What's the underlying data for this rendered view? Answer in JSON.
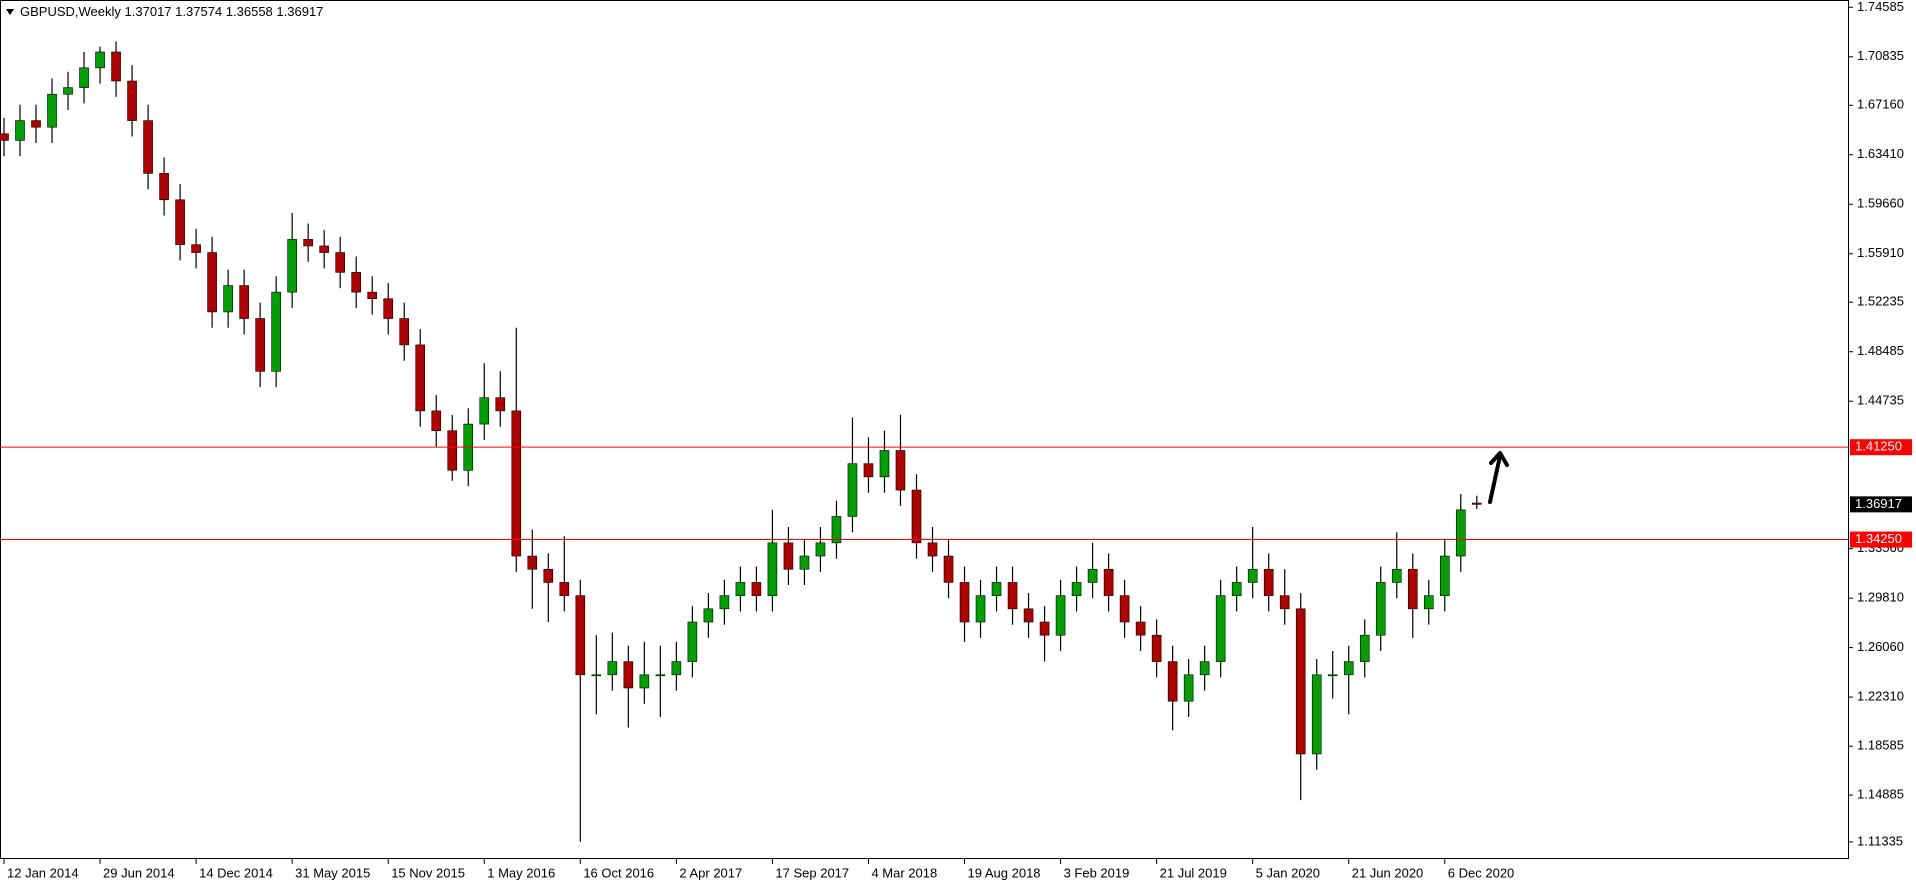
{
  "chart_data": {
    "type": "candlestick",
    "title": "GBPUSD,Weekly",
    "x": [
      "2014-01-12",
      "2014-02-09",
      "2014-03-09",
      "2014-04-06",
      "2014-05-04",
      "2014-06-01",
      "2014-06-29",
      "2014-07-27",
      "2014-08-24",
      "2014-09-21",
      "2014-10-19",
      "2014-11-16",
      "2014-12-14",
      "2015-01-11",
      "2015-02-08",
      "2015-03-08",
      "2015-04-05",
      "2015-05-03",
      "2015-05-31",
      "2015-06-28",
      "2015-07-26",
      "2015-08-23",
      "2015-09-20",
      "2015-10-18",
      "2015-11-15",
      "2015-12-13",
      "2016-01-10",
      "2016-02-07",
      "2016-03-06",
      "2016-04-03",
      "2016-05-01",
      "2016-05-29",
      "2016-06-26",
      "2016-07-24",
      "2016-08-21",
      "2016-09-18",
      "2016-10-16",
      "2016-11-13",
      "2016-12-11",
      "2017-01-08",
      "2017-02-05",
      "2017-03-05",
      "2017-04-02",
      "2017-04-30",
      "2017-05-28",
      "2017-06-25",
      "2017-07-23",
      "2017-08-20",
      "2017-09-17",
      "2017-10-15",
      "2017-11-12",
      "2017-12-10",
      "2018-01-07",
      "2018-02-04",
      "2018-03-04",
      "2018-04-01",
      "2018-04-29",
      "2018-05-27",
      "2018-06-24",
      "2018-07-22",
      "2018-08-19",
      "2018-09-16",
      "2018-10-14",
      "2018-11-11",
      "2018-12-09",
      "2019-01-06",
      "2019-02-03",
      "2019-03-03",
      "2019-03-31",
      "2019-04-28",
      "2019-05-26",
      "2019-06-23",
      "2019-07-21",
      "2019-08-18",
      "2019-09-15",
      "2019-10-13",
      "2019-11-10",
      "2019-12-08",
      "2020-01-05",
      "2020-02-02",
      "2020-03-01",
      "2020-03-29",
      "2020-04-26",
      "2020-05-24",
      "2020-06-21",
      "2020-07-19",
      "2020-08-16",
      "2020-09-13",
      "2020-10-11",
      "2020-11-08",
      "2020-12-06",
      "2021-01-03",
      "2021-01-31"
    ],
    "series": [
      {
        "up_color": "#00a000",
        "down_color": "#b00000",
        "wick_color": "#000000",
        "open": [
          1.65,
          1.645,
          1.66,
          1.655,
          1.68,
          1.685,
          1.7,
          1.712,
          1.69,
          1.66,
          1.62,
          1.6,
          1.566,
          1.56,
          1.515,
          1.535,
          1.51,
          1.47,
          1.53,
          1.57,
          1.565,
          1.56,
          1.545,
          1.53,
          1.525,
          1.51,
          1.49,
          1.44,
          1.425,
          1.395,
          1.43,
          1.45,
          1.44,
          1.33,
          1.32,
          1.31,
          1.3,
          1.24,
          1.24,
          1.25,
          1.23,
          1.24,
          1.24,
          1.25,
          1.28,
          1.29,
          1.3,
          1.31,
          1.3,
          1.34,
          1.32,
          1.33,
          1.34,
          1.36,
          1.4,
          1.39,
          1.41,
          1.38,
          1.34,
          1.33,
          1.31,
          1.28,
          1.3,
          1.31,
          1.29,
          1.28,
          1.27,
          1.3,
          1.31,
          1.32,
          1.3,
          1.28,
          1.27,
          1.25,
          1.22,
          1.24,
          1.25,
          1.3,
          1.31,
          1.32,
          1.3,
          1.29,
          1.18,
          1.24,
          1.24,
          1.25,
          1.27,
          1.31,
          1.32,
          1.29,
          1.3,
          1.33,
          1.37017
        ],
        "high": [
          1.662,
          1.672,
          1.672,
          1.692,
          1.697,
          1.712,
          1.716,
          1.72,
          1.702,
          1.672,
          1.632,
          1.612,
          1.578,
          1.572,
          1.547,
          1.547,
          1.522,
          1.542,
          1.59,
          1.582,
          1.577,
          1.572,
          1.557,
          1.542,
          1.537,
          1.522,
          1.502,
          1.452,
          1.437,
          1.442,
          1.476,
          1.47,
          1.503,
          1.35,
          1.332,
          1.345,
          1.312,
          1.27,
          1.272,
          1.262,
          1.265,
          1.262,
          1.265,
          1.292,
          1.302,
          1.312,
          1.322,
          1.322,
          1.365,
          1.352,
          1.342,
          1.352,
          1.372,
          1.435,
          1.42,
          1.425,
          1.437,
          1.392,
          1.352,
          1.342,
          1.322,
          1.312,
          1.322,
          1.322,
          1.302,
          1.292,
          1.312,
          1.322,
          1.34,
          1.332,
          1.312,
          1.292,
          1.282,
          1.262,
          1.252,
          1.262,
          1.312,
          1.322,
          1.352,
          1.332,
          1.32,
          1.302,
          1.252,
          1.258,
          1.262,
          1.282,
          1.322,
          1.348,
          1.332,
          1.312,
          1.342,
          1.377,
          1.37574
        ],
        "low": [
          1.633,
          1.633,
          1.643,
          1.643,
          1.668,
          1.673,
          1.688,
          1.678,
          1.648,
          1.608,
          1.588,
          1.554,
          1.548,
          1.503,
          1.503,
          1.498,
          1.458,
          1.458,
          1.518,
          1.553,
          1.548,
          1.533,
          1.518,
          1.513,
          1.498,
          1.478,
          1.428,
          1.413,
          1.387,
          1.383,
          1.418,
          1.428,
          1.318,
          1.29,
          1.28,
          1.288,
          1.1135,
          1.21,
          1.228,
          1.2,
          1.218,
          1.208,
          1.228,
          1.238,
          1.268,
          1.278,
          1.288,
          1.288,
          1.288,
          1.308,
          1.308,
          1.318,
          1.328,
          1.348,
          1.378,
          1.378,
          1.368,
          1.328,
          1.318,
          1.298,
          1.265,
          1.268,
          1.288,
          1.278,
          1.268,
          1.25,
          1.258,
          1.288,
          1.298,
          1.288,
          1.268,
          1.258,
          1.238,
          1.198,
          1.208,
          1.228,
          1.238,
          1.288,
          1.298,
          1.288,
          1.278,
          1.145,
          1.168,
          1.222,
          1.21,
          1.238,
          1.258,
          1.298,
          1.268,
          1.278,
          1.288,
          1.318,
          1.36558
        ],
        "close": [
          1.645,
          1.66,
          1.655,
          1.68,
          1.685,
          1.7,
          1.712,
          1.69,
          1.66,
          1.62,
          1.6,
          1.566,
          1.56,
          1.515,
          1.535,
          1.51,
          1.47,
          1.53,
          1.57,
          1.565,
          1.56,
          1.545,
          1.53,
          1.525,
          1.51,
          1.49,
          1.44,
          1.425,
          1.395,
          1.43,
          1.45,
          1.44,
          1.33,
          1.32,
          1.31,
          1.3,
          1.24,
          1.24,
          1.25,
          1.23,
          1.24,
          1.24,
          1.25,
          1.28,
          1.29,
          1.3,
          1.31,
          1.3,
          1.34,
          1.32,
          1.33,
          1.34,
          1.36,
          1.4,
          1.39,
          1.41,
          1.38,
          1.34,
          1.33,
          1.31,
          1.28,
          1.3,
          1.31,
          1.29,
          1.28,
          1.27,
          1.3,
          1.31,
          1.32,
          1.3,
          1.28,
          1.27,
          1.25,
          1.22,
          1.24,
          1.25,
          1.3,
          1.31,
          1.32,
          1.3,
          1.29,
          1.18,
          1.24,
          1.24,
          1.25,
          1.27,
          1.31,
          1.32,
          1.29,
          1.3,
          1.33,
          1.365,
          1.36917
        ]
      }
    ],
    "current_price_color": "#000000",
    "hlines": [
      {
        "value": 1.4125,
        "label": "1.41250",
        "color": "#ff0000"
      },
      {
        "value": 1.3425,
        "label": "1.34250",
        "color": "#ff0000"
      }
    ],
    "xlim": [
      "2014-01-05",
      "2022-11-13"
    ],
    "ylim": [
      1.1004,
      1.7514
    ],
    "yticks": [
      1.74585,
      1.70835,
      {
        "value": 1.6716,
        "label": "1.67160"
      },
      {
        "value": 1.6341,
        "label": "1.63410"
      },
      {
        "value": 1.5966,
        "label": "1.59660"
      },
      {
        "value": 1.5591,
        "label": "1.55910"
      },
      1.52235,
      1.48485,
      1.44735,
      {
        "value": 1.3356,
        "label": "1.33560"
      },
      {
        "value": 1.2981,
        "label": "1.29810"
      },
      {
        "value": 1.2606,
        "label": "1.26060"
      },
      {
        "value": 1.2231,
        "label": "1.22310"
      },
      1.18585,
      1.14885,
      1.11335
    ],
    "xticks": [
      {
        "value": "2014-01-12",
        "label": "12 Jan 2014"
      },
      {
        "value": "2014-06-29",
        "label": "29 Jun 2014"
      },
      {
        "value": "2014-12-14",
        "label": "14 Dec 2014"
      },
      {
        "value": "2015-05-31",
        "label": "31 May 2015"
      },
      {
        "value": "2015-11-15",
        "label": "15 Nov 2015"
      },
      {
        "value": "2016-05-01",
        "label": "1 May 2016"
      },
      {
        "value": "2016-10-16",
        "label": "16 Oct 2016"
      },
      {
        "value": "2017-04-02",
        "label": "2 Apr 2017"
      },
      {
        "value": "2017-09-17",
        "label": "17 Sep 2017"
      },
      {
        "value": "2018-03-04",
        "label": "4 Mar 2018"
      },
      {
        "value": "2018-08-19",
        "label": "19 Aug 2018"
      },
      {
        "value": "2019-02-03",
        "label": "3 Feb 2019"
      },
      {
        "value": "2019-07-21",
        "label": "21 Jul 2019"
      },
      {
        "value": "2020-01-05",
        "label": "5 Jan 2020"
      },
      {
        "value": "2020-06-21",
        "label": "21 Jun 2020"
      },
      {
        "value": "2020-12-06",
        "label": "6 Dec 2020"
      }
    ]
  }
}
